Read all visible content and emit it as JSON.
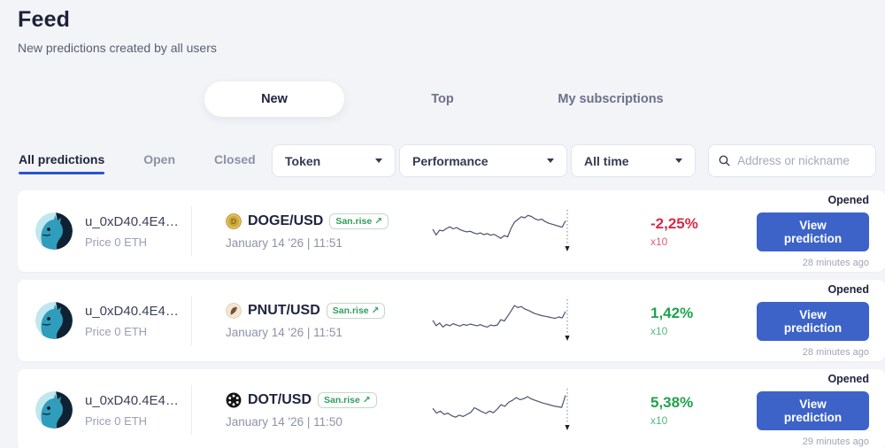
{
  "page": {
    "title": "Feed",
    "subtitle": "New predictions created by all users"
  },
  "main_tabs": [
    {
      "label": "New",
      "active": true
    },
    {
      "label": "Top",
      "active": false
    },
    {
      "label": "My subscriptions",
      "active": false
    }
  ],
  "filter_bar": {
    "status_tabs": [
      {
        "label": "All predictions",
        "active": true
      },
      {
        "label": "Open",
        "active": false
      },
      {
        "label": "Closed",
        "active": false
      }
    ],
    "dropdowns": [
      {
        "label": "Token"
      },
      {
        "label": "Performance"
      },
      {
        "label": "All time"
      }
    ],
    "search": {
      "placeholder": "Address or nickname"
    }
  },
  "icons": {
    "external_link": "↗"
  },
  "colors": {
    "accent_blue": "#3d63c9",
    "positive_green": "#1fa34b",
    "negative_red": "#d42b47",
    "active_underline": "#2b55c8",
    "page_bg": "#f3f4f8",
    "card_bg": "#ffffff"
  },
  "cards": [
    {
      "user": {
        "name": "u_0xD40.4E4…",
        "price": "Price 0 ETH"
      },
      "token": {
        "pair": "DOGE/USD",
        "icon": "doge-coin-icon",
        "source": "San.rise"
      },
      "date": "January 14 '26 | 11:51",
      "performance": {
        "value": "-2,25%",
        "multiplier": "x10",
        "direction": "down"
      },
      "status": "Opened",
      "action_label": "View prediction",
      "time_ago": "28 minutes ago",
      "sparkline": [
        45,
        28,
        42,
        40,
        47,
        52,
        46,
        50,
        44,
        40,
        37,
        39,
        34,
        31,
        34,
        29,
        32,
        27,
        30,
        24,
        18,
        26,
        22,
        48,
        66,
        74,
        82,
        79,
        86,
        83,
        76,
        72,
        75,
        68,
        63,
        60,
        57,
        54,
        51,
        70
      ]
    },
    {
      "user": {
        "name": "u_0xD40.4E4…",
        "price": "Price 0 ETH"
      },
      "token": {
        "pair": "PNUT/USD",
        "icon": "pnut-coin-icon",
        "source": "San.rise"
      },
      "date": "January 14 '26 | 11:51",
      "performance": {
        "value": "1,42%",
        "multiplier": "x10",
        "direction": "up"
      },
      "status": "Opened",
      "action_label": "View prediction",
      "time_ago": "28 minutes ago",
      "sparkline": [
        40,
        24,
        32,
        20,
        28,
        24,
        30,
        26,
        23,
        28,
        25,
        29,
        26,
        24,
        27,
        23,
        20,
        26,
        24,
        26,
        42,
        38,
        52,
        68,
        84,
        78,
        81,
        74,
        70,
        65,
        60,
        57,
        54,
        52,
        50,
        48,
        46,
        50,
        47,
        66
      ]
    },
    {
      "user": {
        "name": "u_0xD40.4E4…",
        "price": "Price 0 ETH"
      },
      "token": {
        "pair": "DOT/USD",
        "icon": "dot-coin-icon",
        "source": "San.rise"
      },
      "date": "January 14 '26 | 11:50",
      "performance": {
        "value": "5,38%",
        "multiplier": "x10",
        "direction": "up"
      },
      "status": "Opened",
      "action_label": "View prediction",
      "time_ago": "29 minutes ago",
      "sparkline": [
        44,
        30,
        36,
        26,
        30,
        22,
        18,
        24,
        20,
        26,
        32,
        46,
        40,
        34,
        29,
        36,
        31,
        42,
        55,
        50,
        62,
        68,
        76,
        70,
        73,
        79,
        72,
        68,
        64,
        60,
        57,
        54,
        51,
        49,
        47,
        83
      ]
    }
  ]
}
